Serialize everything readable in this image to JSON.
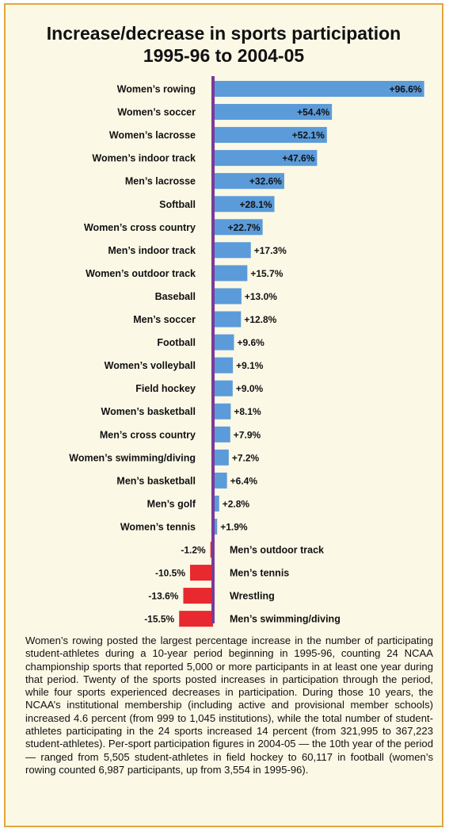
{
  "chart_data": {
    "type": "bar",
    "orientation": "horizontal",
    "title": "Increase/decrease in sports participation",
    "subtitle": "1995-96 to 2004-05",
    "categories": [
      "Women’s rowing",
      "Women’s soccer",
      "Women’s lacrosse",
      "Women’s indoor track",
      "Men’s lacrosse",
      "Softball",
      "Women’s cross country",
      "Men’s indoor track",
      "Women’s outdoor track",
      "Baseball",
      "Men’s soccer",
      "Football",
      "Women’s volleyball",
      "Field hockey",
      "Women’s basketball",
      "Men’s cross country",
      "Women’s swimming/diving",
      "Men’s basketball",
      "Men’s golf",
      "Women’s tennis",
      "Men’s outdoor track",
      "Men’s tennis",
      "Wrestling",
      "Men’s swimming/diving"
    ],
    "values": [
      96.6,
      54.4,
      52.1,
      47.6,
      32.6,
      28.1,
      22.7,
      17.3,
      15.7,
      13.0,
      12.8,
      9.6,
      9.1,
      9.0,
      8.1,
      7.9,
      7.2,
      6.4,
      2.8,
      1.9,
      -1.2,
      -10.5,
      -13.6,
      -15.5
    ],
    "labels": [
      "+96.6%",
      "+54.4%",
      "+52.1%",
      "+47.6%",
      "+32.6%",
      "+28.1%",
      "+22.7%",
      "+17.3%",
      "+15.7%",
      "+13.0%",
      "+12.8%",
      "+9.6%",
      "+9.1%",
      "+9.0%",
      "+8.1%",
      "+7.9%",
      "+7.2%",
      "+6.4%",
      "+2.8%",
      "+1.9%",
      "-1.2%",
      "-10.5%",
      "-13.6%",
      "-15.5%"
    ],
    "xlim": [
      -15.5,
      96.6
    ],
    "grid": false,
    "colors": {
      "positive": "#5b9bd9",
      "negative": "#e8292f",
      "axis": "#7b3a97",
      "frame": "#e3a73b",
      "background": "#fbf8e6"
    }
  },
  "caption": "Women’s rowing posted the largest percentage increase in the number of participating student-athletes during a 10-year period beginning in 1995-96, counting 24 NCAA championship sports that reported 5,000 or more participants in at least one year during that period. Twenty of the sports posted increases in participation through the period, while four sports experienced decreases in participation. During those 10 years, the NCAA’s institutional membership (including active and provisional member schools) increased 4.6 percent (from 999 to 1,045 institutions), while the total number of student-athletes participating in the 24 sports increased 14 percent (from 321,995 to 367,223 student-athletes). Per-sport participation figures in 2004-05 — the 10th year of the period — ranged from 5,505 student-athletes in field hockey to 60,117 in football (women’s rowing counted 6,987 participants, up from 3,554 in 1995-96)."
}
